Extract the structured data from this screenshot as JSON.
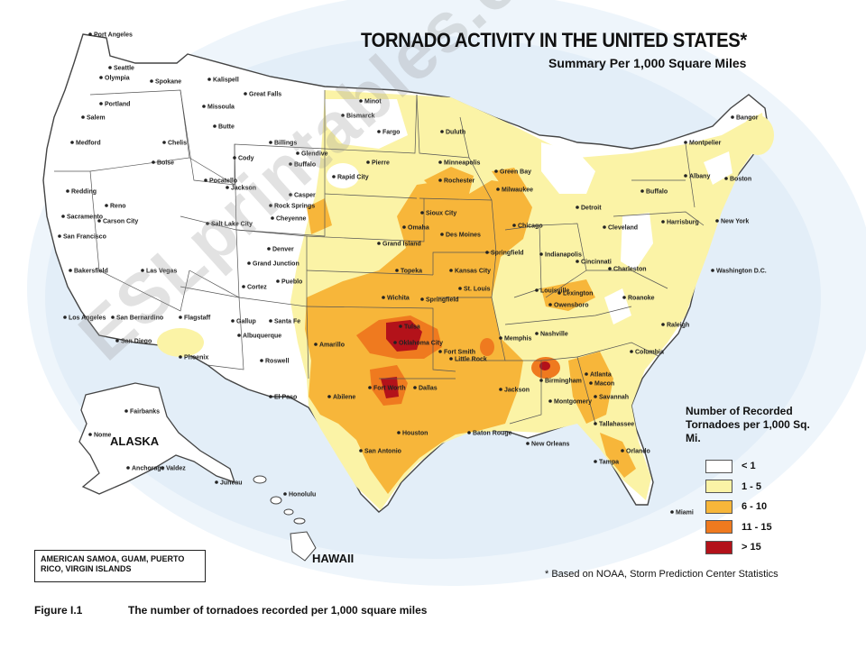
{
  "title": "TORNADO ACTIVITY IN THE UNITED STATES*",
  "subtitle": "Summary Per 1,000 Square Miles",
  "legend": {
    "title": "Number of Recorded Tornadoes per 1,000 Sq. Mi.",
    "items": [
      {
        "label": "< 1",
        "color": "#ffffff"
      },
      {
        "label": "1 - 5",
        "color": "#fbf3a6"
      },
      {
        "label": "6 - 10",
        "color": "#f7b63a"
      },
      {
        "label": "11 - 15",
        "color": "#ef7a1f"
      },
      {
        "label": "> 15",
        "color": "#b3121a"
      }
    ]
  },
  "regions": {
    "alaska": "ALASKA",
    "hawaii": "HAWAII"
  },
  "territories": "AMERICAN SAMOA, GUAM, PUERTO RICO, VIRGIN ISLANDS",
  "source_note": "* Based on NOAA, Storm Prediction Center Statistics",
  "figure": {
    "number": "Figure I.1",
    "caption": "The number of tornadoes recorded per 1,000 square miles"
  },
  "watermark": "ESLprintables.com",
  "cities": [
    "Port Angeles",
    "Seattle",
    "Olympia",
    "Spokane",
    "Portland",
    "Salem",
    "Medford",
    "Chelis",
    "Boise",
    "Redding",
    "Reno",
    "Carson City",
    "Sacramento",
    "San Francisco",
    "Bakersfield",
    "Las Vegas",
    "Los Angeles",
    "San Bernardino",
    "San Diego",
    "Phoenix",
    "Flagstaff",
    "Kalispell",
    "Great Falls",
    "Missoula",
    "Butte",
    "Billings",
    "Glendive",
    "Cody",
    "Buffalo",
    "Pocatello",
    "Jackson",
    "Rock Springs",
    "Casper",
    "Cheyenne",
    "Salt Lake City",
    "Denver",
    "Grand Junction",
    "Pueblo",
    "Cortez",
    "Gallup",
    "Santa Fe",
    "Albuquerque",
    "Roswell",
    "El Paso",
    "Minot",
    "Bismarck",
    "Fargo",
    "Duluth",
    "Pierre",
    "Rapid City",
    "Minneapolis",
    "Rochester",
    "Green Bay",
    "Milwaukee",
    "Sioux City",
    "Omaha",
    "Des Moines",
    "Chicago",
    "Grand Island",
    "Springfield",
    "Indianapolis",
    "Topeka",
    "Kansas City",
    "St. Louis",
    "Cincinnati",
    "Wichita",
    "Springfield",
    "Louisville",
    "Lexington",
    "Owensboro",
    "Tulsa",
    "Oklahoma City",
    "Fort Smith",
    "Memphis",
    "Nashville",
    "Amarillo",
    "Little Rock",
    "Birmingham",
    "Atlanta",
    "Macon",
    "Fort Worth",
    "Dallas",
    "Abilene",
    "Jackson",
    "Montgomery",
    "Savannah",
    "Houston",
    "Baton Rouge",
    "New Orleans",
    "Tallahassee",
    "Orlando",
    "Tampa",
    "San Antonio",
    "Miami",
    "Detroit",
    "Cleveland",
    "Buffalo",
    "Albany",
    "Boston",
    "Harrisburg",
    "New York",
    "Washington D.C.",
    "Charleston",
    "Roanoke",
    "Raleigh",
    "Columbia",
    "Montpelier",
    "Bangor",
    "Fairbanks",
    "Nome",
    "Anchorage",
    "Valdez",
    "Juneau",
    "Honolulu"
  ]
}
